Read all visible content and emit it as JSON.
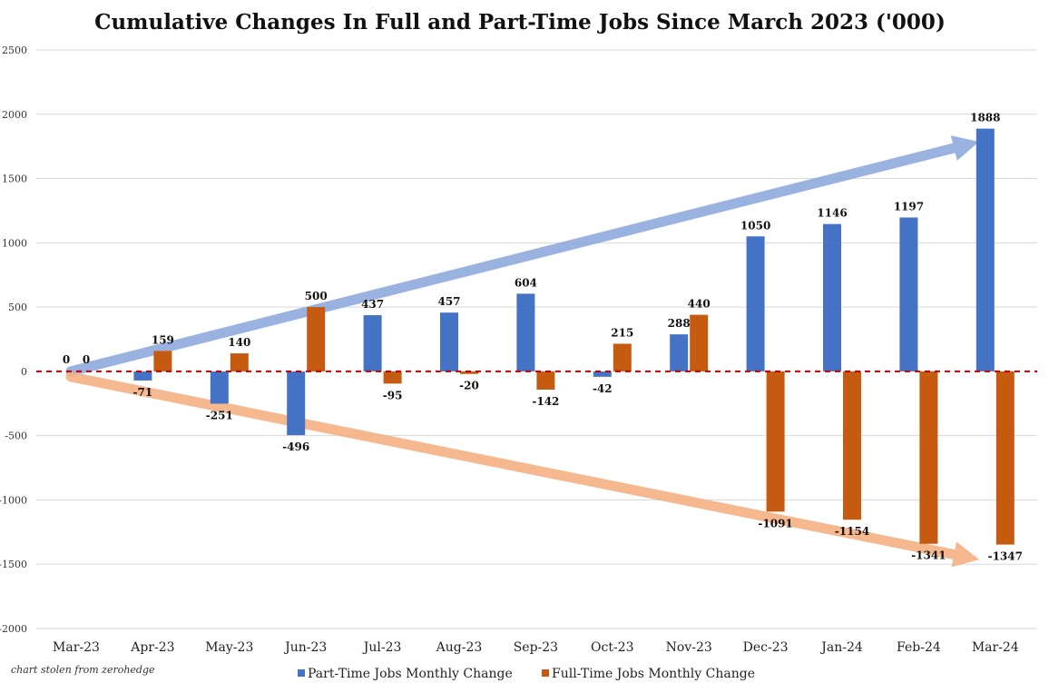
{
  "chart_data": {
    "type": "bar",
    "title": "Cumulative Changes In Full and Part-Time Jobs Since March 2023 ('000)",
    "categories": [
      "Mar-23",
      "Apr-23",
      "May-23",
      "Jun-23",
      "Jul-23",
      "Aug-23",
      "Sep-23",
      "Oct-23",
      "Nov-23",
      "Dec-23",
      "Jan-24",
      "Feb-24",
      "Mar-24"
    ],
    "series": [
      {
        "name": "Part-Time Jobs Monthly Change",
        "color": "#4472c4",
        "values": [
          0,
          -71,
          -251,
          -496,
          437,
          457,
          604,
          -42,
          288,
          1050,
          1146,
          1197,
          1888
        ]
      },
      {
        "name": "Full-Time Jobs Monthly Change",
        "color": "#c55a11",
        "values": [
          0,
          159,
          140,
          500,
          -95,
          -20,
          -142,
          215,
          440,
          -1091,
          -1154,
          -1341,
          -1347
        ]
      }
    ],
    "ylim": [
      -2000,
      2500
    ],
    "yticks": [
      -2000,
      -1500,
      -1000,
      -500,
      0,
      500,
      1000,
      1500,
      2000,
      2500
    ],
    "grid": true,
    "legend_position": "bottom",
    "zero_line_color": "#c00000",
    "trend_arrows": [
      {
        "series": "Part-Time Jobs Monthly Change",
        "color": "#8faadc",
        "from": [
          "Mar-23",
          0
        ],
        "to": [
          "Mar-24",
          1888
        ]
      },
      {
        "series": "Full-Time Jobs Monthly Change",
        "color": "#f4b183",
        "from": [
          "Mar-23",
          0
        ],
        "to": [
          "Mar-24",
          -1347
        ]
      }
    ],
    "credit": "chart stolen from zerohedge"
  }
}
